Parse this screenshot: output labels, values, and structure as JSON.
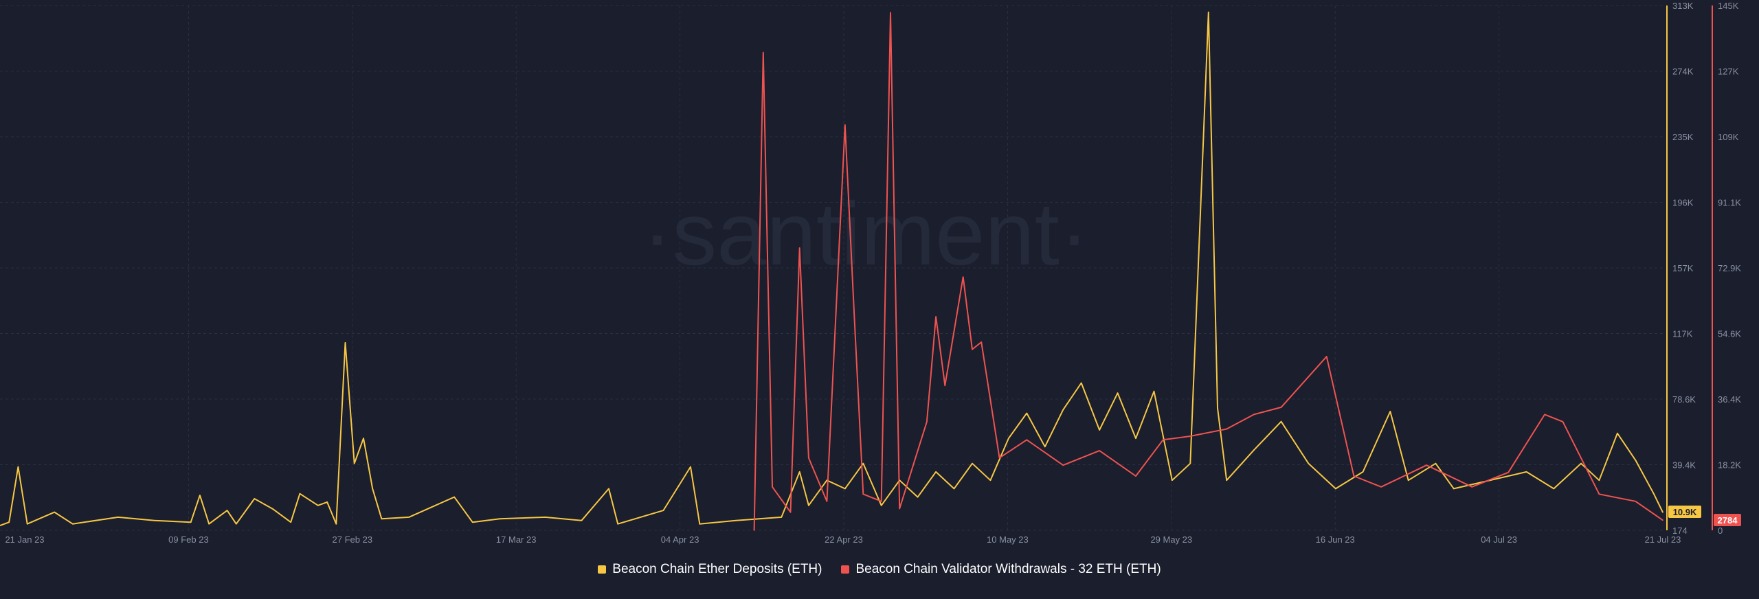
{
  "watermark": "·santiment·",
  "legend": {
    "deposits_label": "Beacon Chain Ether Deposits (ETH)",
    "withdrawals_label": "Beacon Chain Validator Withdrawals - 32 ETH (ETH)"
  },
  "colors": {
    "background": "#1a1e2d",
    "deposits": "#f7c744",
    "withdrawals": "#ef5350",
    "grid": "#2a3042",
    "tick_text": "#8a91a3"
  },
  "chart_data": {
    "type": "line",
    "title": "",
    "grid": true,
    "legend_position": "bottom-center",
    "x_range": [
      "2023-01-19",
      "2023-07-21"
    ],
    "x_ticks": [
      "21 Jan 23",
      "09 Feb 23",
      "27 Feb 23",
      "17 Mar 23",
      "04 Apr 23",
      "22 Apr 23",
      "10 May 23",
      "29 May 23",
      "16 Jun 23",
      "04 Jul 23",
      "21 Jul 23"
    ],
    "y_left": {
      "series": "Beacon Chain Ether Deposits (ETH)",
      "range": [
        174,
        313000
      ],
      "ticks": [
        "313K",
        "274K",
        "235K",
        "196K",
        "157K",
        "117K",
        "78.6K",
        "39.4K",
        "174"
      ],
      "last_value_label": "10.9K"
    },
    "y_right": {
      "series": "Beacon Chain Validator Withdrawals - 32 ETH (ETH)",
      "range": [
        0,
        145000
      ],
      "ticks": [
        "145K",
        "127K",
        "109K",
        "91.1K",
        "72.9K",
        "54.6K",
        "36.4K",
        "18.2K",
        "0"
      ],
      "last_value_label": "2784"
    },
    "series": [
      {
        "name": "Beacon Chain Ether Deposits (ETH)",
        "axis": "left",
        "points": [
          [
            "2023-01-19",
            3000
          ],
          [
            "2023-01-20",
            5000
          ],
          [
            "2023-01-21",
            38000
          ],
          [
            "2023-01-22",
            4000
          ],
          [
            "2023-01-25",
            11000
          ],
          [
            "2023-01-27",
            4000
          ],
          [
            "2023-02-01",
            8000
          ],
          [
            "2023-02-05",
            6000
          ],
          [
            "2023-02-09",
            5000
          ],
          [
            "2023-02-10",
            21000
          ],
          [
            "2023-02-11",
            4000
          ],
          [
            "2023-02-13",
            12000
          ],
          [
            "2023-02-14",
            4000
          ],
          [
            "2023-02-16",
            19000
          ],
          [
            "2023-02-18",
            13000
          ],
          [
            "2023-02-20",
            5000
          ],
          [
            "2023-02-21",
            22000
          ],
          [
            "2023-02-23",
            15000
          ],
          [
            "2023-02-24",
            17000
          ],
          [
            "2023-02-25",
            4000
          ],
          [
            "2023-02-26",
            112000
          ],
          [
            "2023-02-27",
            40000
          ],
          [
            "2023-02-28",
            55000
          ],
          [
            "2023-03-01",
            25000
          ],
          [
            "2023-03-02",
            7000
          ],
          [
            "2023-03-05",
            8000
          ],
          [
            "2023-03-10",
            20000
          ],
          [
            "2023-03-12",
            5000
          ],
          [
            "2023-03-15",
            7000
          ],
          [
            "2023-03-20",
            8000
          ],
          [
            "2023-03-24",
            6000
          ],
          [
            "2023-03-27",
            25000
          ],
          [
            "2023-03-28",
            4000
          ],
          [
            "2023-04-02",
            12000
          ],
          [
            "2023-04-05",
            38000
          ],
          [
            "2023-04-06",
            4000
          ],
          [
            "2023-04-10",
            6000
          ],
          [
            "2023-04-15",
            8000
          ],
          [
            "2023-04-17",
            35000
          ],
          [
            "2023-04-18",
            15000
          ],
          [
            "2023-04-20",
            30000
          ],
          [
            "2023-04-22",
            25000
          ],
          [
            "2023-04-24",
            40000
          ],
          [
            "2023-04-26",
            15000
          ],
          [
            "2023-04-28",
            30000
          ],
          [
            "2023-04-30",
            20000
          ],
          [
            "2023-05-02",
            35000
          ],
          [
            "2023-05-04",
            25000
          ],
          [
            "2023-05-06",
            40000
          ],
          [
            "2023-05-08",
            30000
          ],
          [
            "2023-05-10",
            55000
          ],
          [
            "2023-05-12",
            70000
          ],
          [
            "2023-05-14",
            50000
          ],
          [
            "2023-05-16",
            72000
          ],
          [
            "2023-05-18",
            88000
          ],
          [
            "2023-05-20",
            60000
          ],
          [
            "2023-05-22",
            82000
          ],
          [
            "2023-05-24",
            55000
          ],
          [
            "2023-05-26",
            83000
          ],
          [
            "2023-05-28",
            30000
          ],
          [
            "2023-05-30",
            40000
          ],
          [
            "2023-06-01",
            309000
          ],
          [
            "2023-06-02",
            73000
          ],
          [
            "2023-06-03",
            30000
          ],
          [
            "2023-06-06",
            48000
          ],
          [
            "2023-06-09",
            65000
          ],
          [
            "2023-06-12",
            40000
          ],
          [
            "2023-06-15",
            25000
          ],
          [
            "2023-06-18",
            35000
          ],
          [
            "2023-06-21",
            71000
          ],
          [
            "2023-06-23",
            30000
          ],
          [
            "2023-06-26",
            40000
          ],
          [
            "2023-06-28",
            25000
          ],
          [
            "2023-07-02",
            30000
          ],
          [
            "2023-07-06",
            35000
          ],
          [
            "2023-07-09",
            25000
          ],
          [
            "2023-07-12",
            40000
          ],
          [
            "2023-07-14",
            30000
          ],
          [
            "2023-07-16",
            58000
          ],
          [
            "2023-07-18",
            42000
          ],
          [
            "2023-07-20",
            22000
          ],
          [
            "2023-07-21",
            10900
          ]
        ]
      },
      {
        "name": "Beacon Chain Validator Withdrawals - 32 ETH (ETH)",
        "axis": "right",
        "points": [
          [
            "2023-04-12",
            0
          ],
          [
            "2023-04-13",
            132000
          ],
          [
            "2023-04-14",
            12000
          ],
          [
            "2023-04-16",
            5000
          ],
          [
            "2023-04-17",
            78000
          ],
          [
            "2023-04-18",
            20000
          ],
          [
            "2023-04-20",
            8000
          ],
          [
            "2023-04-22",
            112000
          ],
          [
            "2023-04-23",
            60000
          ],
          [
            "2023-04-24",
            10000
          ],
          [
            "2023-04-26",
            8000
          ],
          [
            "2023-04-27",
            143000
          ],
          [
            "2023-04-28",
            6000
          ],
          [
            "2023-05-01",
            30000
          ],
          [
            "2023-05-02",
            59000
          ],
          [
            "2023-05-03",
            40000
          ],
          [
            "2023-05-05",
            70000
          ],
          [
            "2023-05-06",
            50000
          ],
          [
            "2023-05-07",
            52000
          ],
          [
            "2023-05-09",
            20000
          ],
          [
            "2023-05-12",
            25000
          ],
          [
            "2023-05-16",
            18000
          ],
          [
            "2023-05-20",
            22000
          ],
          [
            "2023-05-24",
            15000
          ],
          [
            "2023-05-27",
            25000
          ],
          [
            "2023-05-30",
            26000
          ],
          [
            "2023-06-03",
            28000
          ],
          [
            "2023-06-06",
            32000
          ],
          [
            "2023-06-09",
            34000
          ],
          [
            "2023-06-14",
            48000
          ],
          [
            "2023-06-17",
            15000
          ],
          [
            "2023-06-20",
            12000
          ],
          [
            "2023-06-25",
            18000
          ],
          [
            "2023-06-30",
            12000
          ],
          [
            "2023-07-04",
            16000
          ],
          [
            "2023-07-08",
            32000
          ],
          [
            "2023-07-10",
            30000
          ],
          [
            "2023-07-14",
            10000
          ],
          [
            "2023-07-18",
            8000
          ],
          [
            "2023-07-21",
            2784
          ]
        ]
      }
    ]
  }
}
